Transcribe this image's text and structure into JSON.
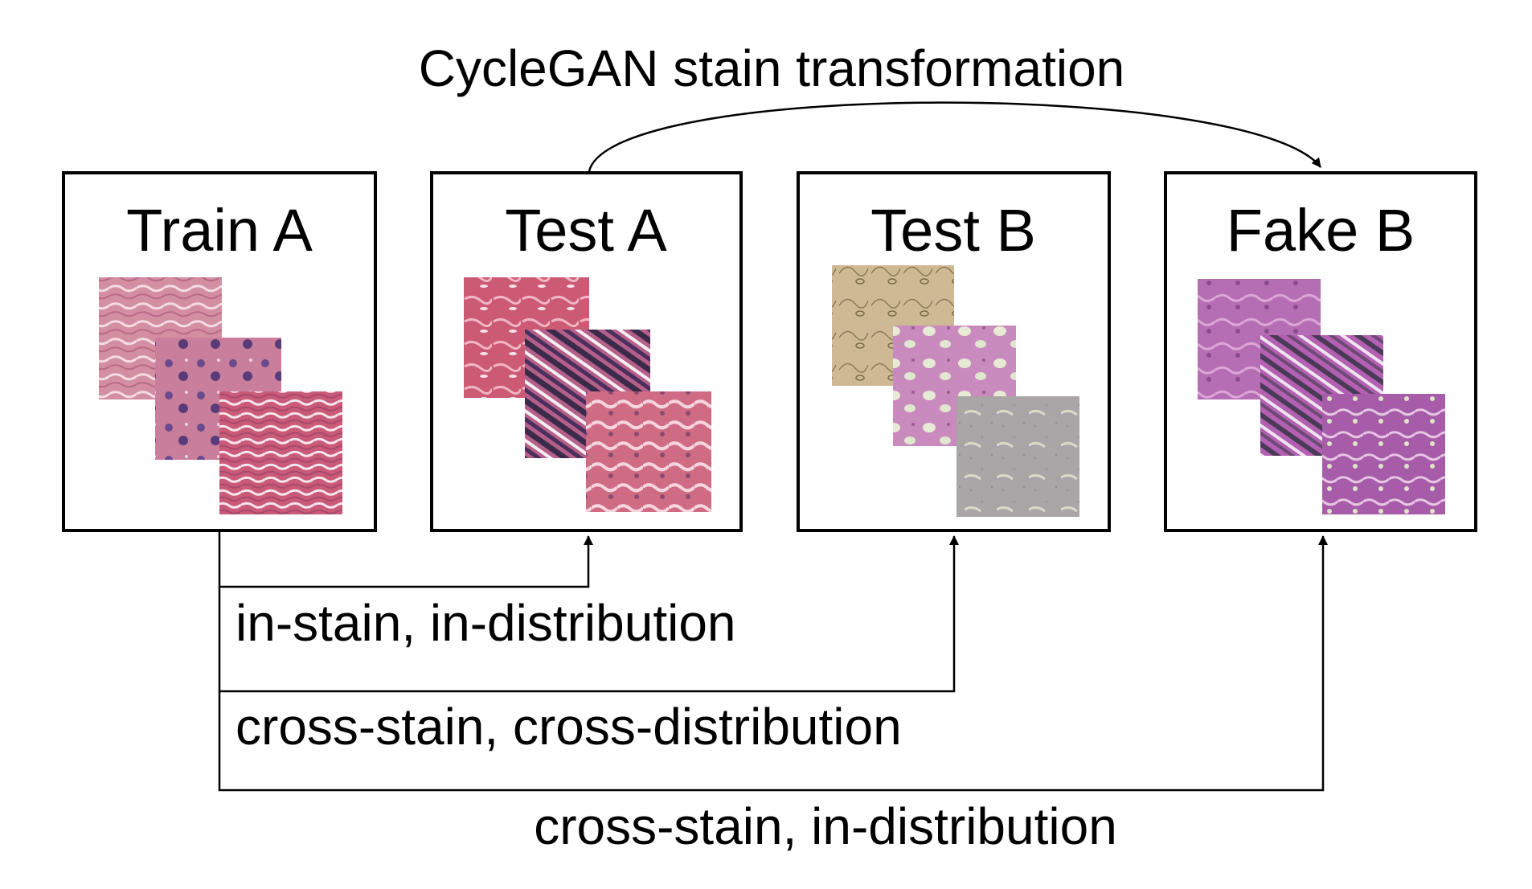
{
  "diagram": {
    "top_label": "CycleGAN stain transformation",
    "boxes": [
      {
        "id": "train-a",
        "title": "Train A"
      },
      {
        "id": "test-a",
        "title": "Test A"
      },
      {
        "id": "test-b",
        "title": "Test B"
      },
      {
        "id": "fake-b",
        "title": "Fake B"
      }
    ],
    "connections": [
      {
        "from": "Train A",
        "to": "Test A",
        "label": "in-stain, in-distribution"
      },
      {
        "from": "Train A",
        "to": "Test B",
        "label": "cross-stain, cross-distribution"
      },
      {
        "from": "Train A",
        "to": "Fake B",
        "label": "cross-stain, in-distribution"
      }
    ],
    "transformation": {
      "from": "Test A",
      "to": "Fake B"
    },
    "tile_colors": {
      "train-a": [
        [
          "#d08a9e",
          "#7a5a9a"
        ],
        [
          "#c97a98",
          "#5b3d7e"
        ],
        [
          "#c85a7a",
          "#e9dfe6"
        ]
      ],
      "test-a": [
        [
          "#c9566e",
          "#e58aa0"
        ],
        [
          "#b45a8a",
          "#3b2a4a"
        ],
        [
          "#cf6a82",
          "#f2c8d2"
        ]
      ],
      "test-b": [
        [
          "#c9b48a",
          "#a38e6a"
        ],
        [
          "#c98abe",
          "#e4e6d2"
        ],
        [
          "#a8a3a3",
          "#c7c3c3"
        ]
      ],
      "fake-b": [
        [
          "#b46ab0",
          "#d79ad4"
        ],
        [
          "#b05ab0",
          "#d48ad0"
        ],
        [
          "#a25aa6",
          "#e3c0e0"
        ]
      ]
    }
  }
}
